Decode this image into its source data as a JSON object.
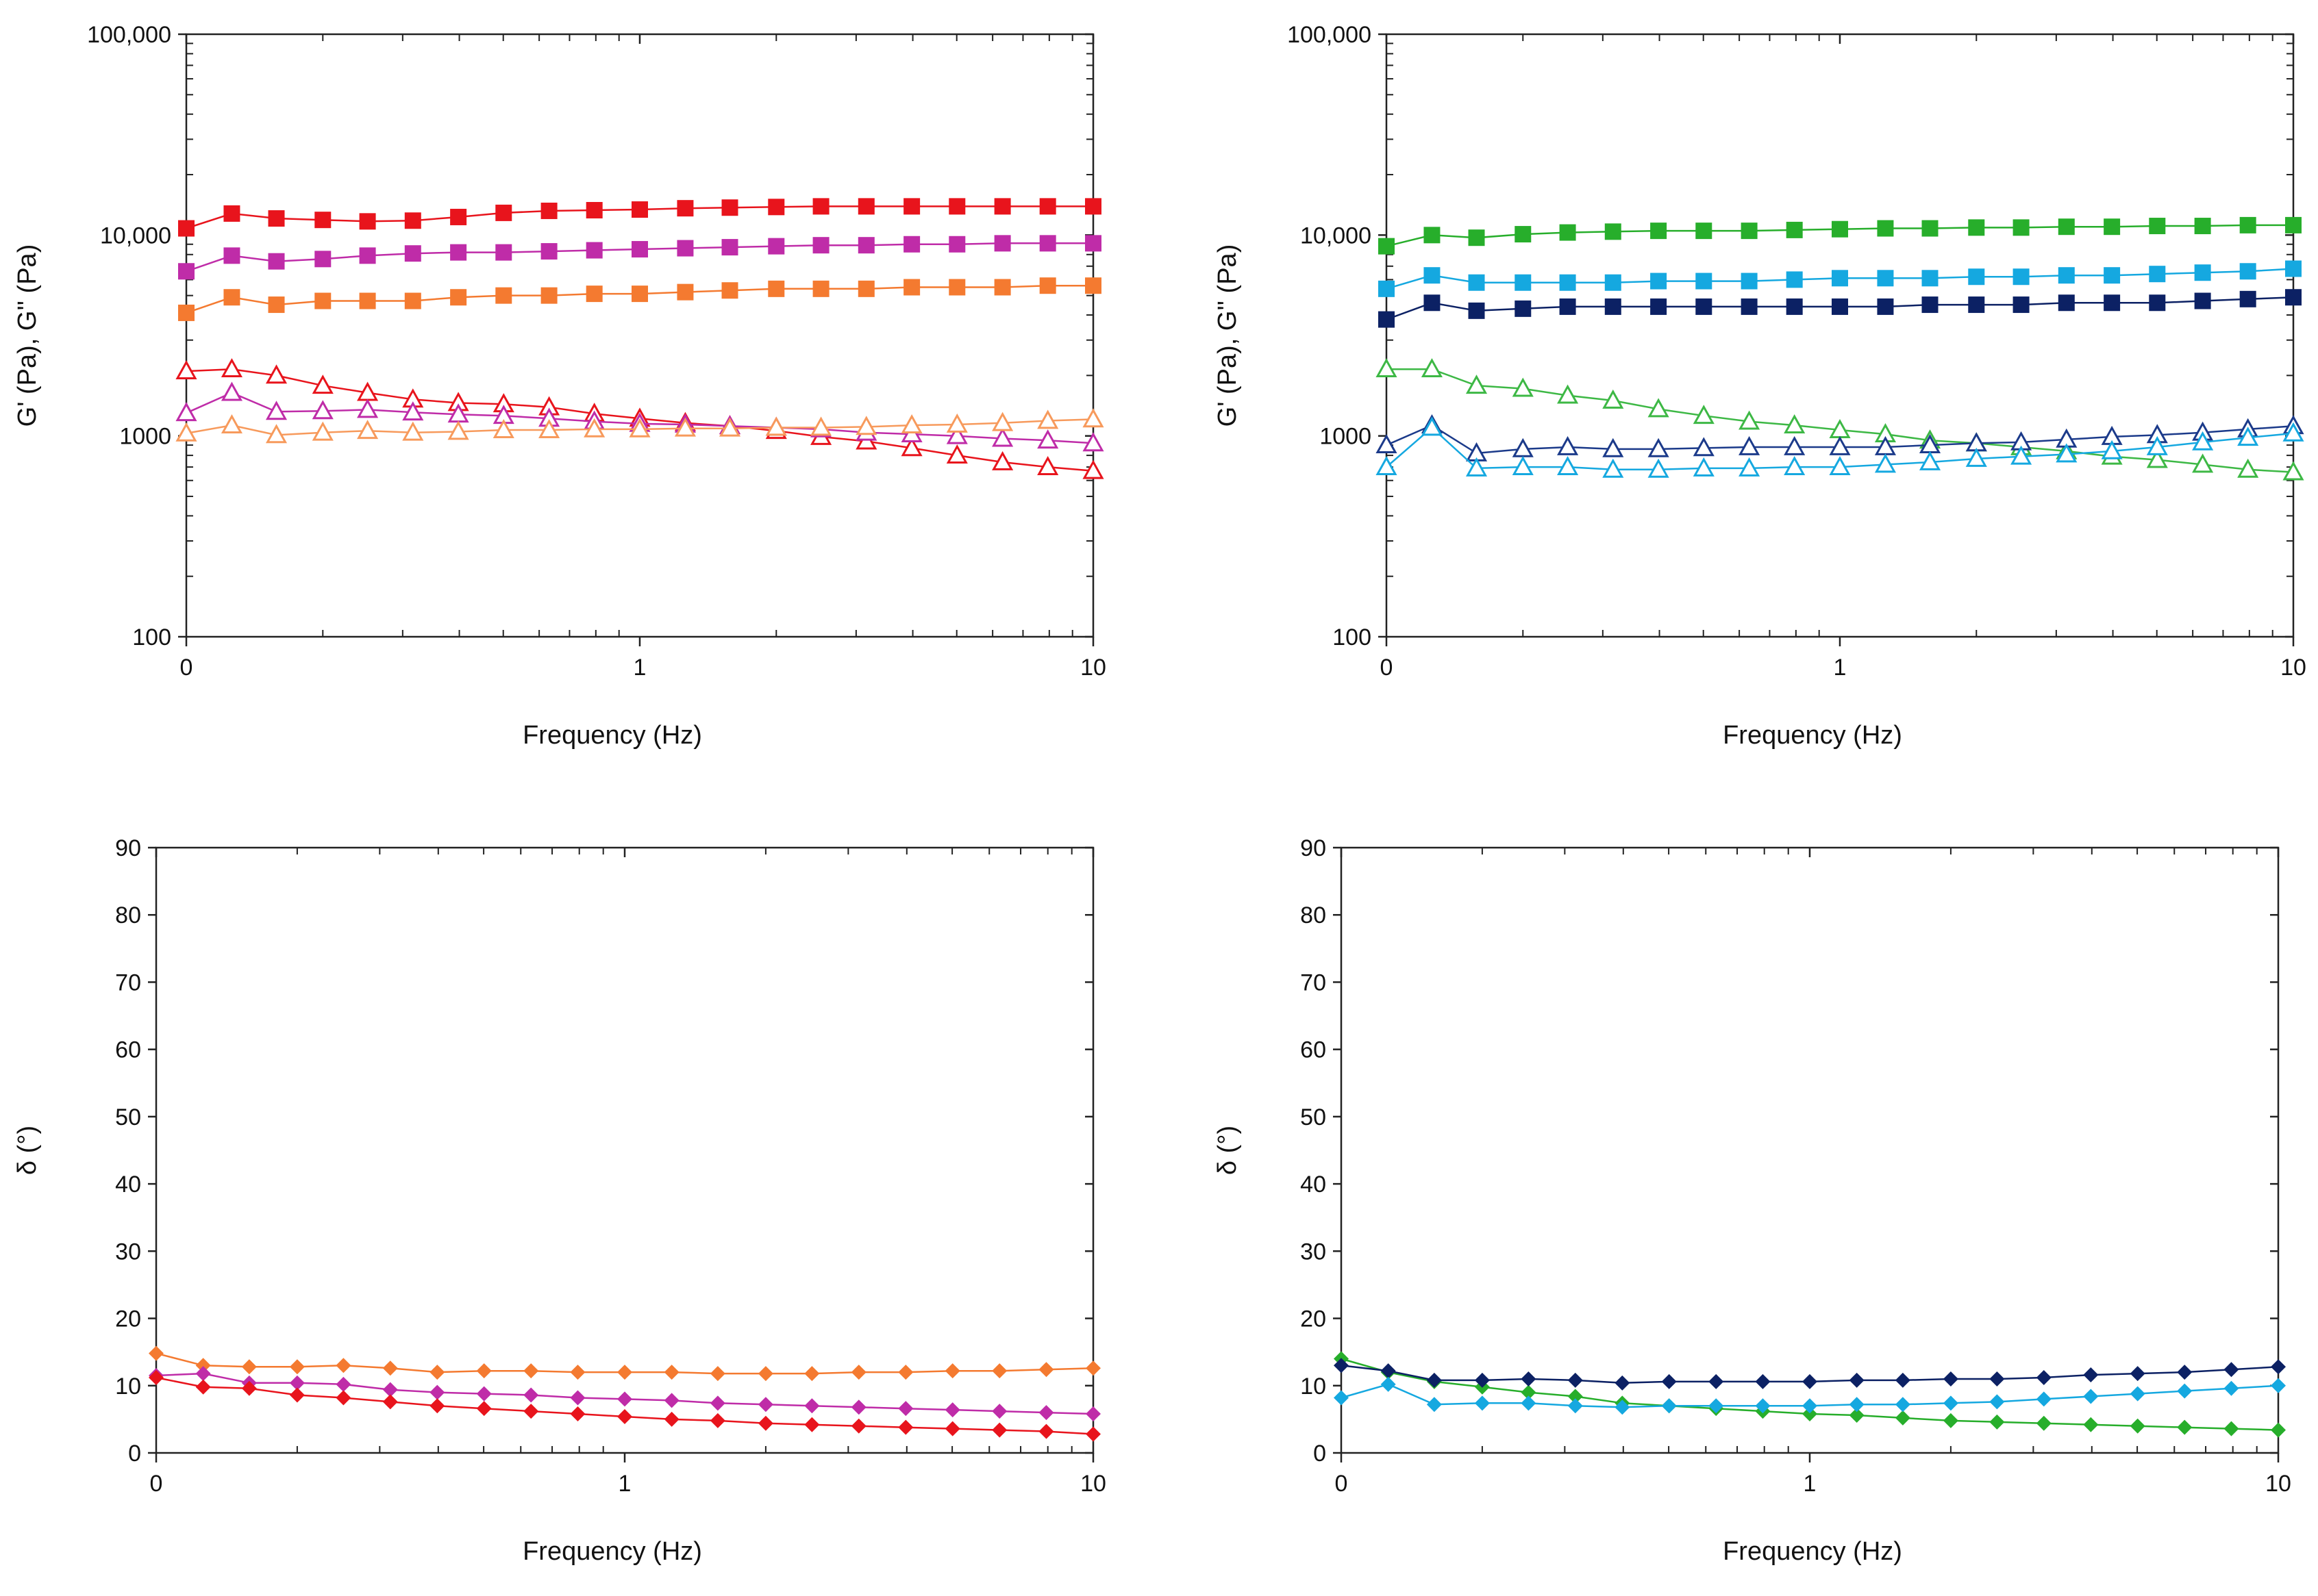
{
  "chart_data": [
    {
      "id": "top-left",
      "type": "line",
      "scale": {
        "x": "log",
        "y": "log"
      },
      "xlabel": "Frequency (Hz)",
      "ylabel": "G' (Pa), G'' (Pa)",
      "xlim": [
        0.1,
        10
      ],
      "ylim": [
        100,
        100000
      ],
      "x_ticks": [
        {
          "v": 0.1,
          "label": "0"
        },
        {
          "v": 1,
          "label": "1"
        },
        {
          "v": 10,
          "label": "10"
        }
      ],
      "y_ticks": [
        {
          "v": 100,
          "label": "100"
        },
        {
          "v": 1000,
          "label": "1000"
        },
        {
          "v": 10000,
          "label": "10,000"
        },
        {
          "v": 100000,
          "label": "100,000"
        }
      ],
      "x": [
        0.1,
        0.126,
        0.158,
        0.2,
        0.251,
        0.316,
        0.398,
        0.501,
        0.631,
        0.794,
        1.0,
        1.26,
        1.58,
        2.0,
        2.51,
        3.16,
        3.98,
        5.01,
        6.31,
        7.94,
        10.0
      ],
      "series": [
        {
          "name": "G' red",
          "color": "#e8141c",
          "marker": "square-filled",
          "values": [
            10800,
            12800,
            12100,
            11900,
            11700,
            11800,
            12300,
            12900,
            13200,
            13300,
            13400,
            13600,
            13700,
            13800,
            13900,
            13900,
            13900,
            13900,
            13900,
            13900,
            13900
          ]
        },
        {
          "name": "G' magenta",
          "color": "#bf2ca8",
          "marker": "square-filled",
          "values": [
            6600,
            7900,
            7400,
            7600,
            7900,
            8100,
            8200,
            8200,
            8300,
            8400,
            8500,
            8600,
            8700,
            8800,
            8900,
            8900,
            9000,
            9000,
            9100,
            9100,
            9100
          ]
        },
        {
          "name": "G' orange",
          "color": "#f47a30",
          "marker": "square-filled",
          "values": [
            4100,
            4900,
            4500,
            4700,
            4700,
            4700,
            4900,
            5000,
            5000,
            5100,
            5100,
            5200,
            5300,
            5400,
            5400,
            5400,
            5500,
            5500,
            5500,
            5600,
            5600
          ]
        },
        {
          "name": "G'' red",
          "color": "#e8141c",
          "marker": "triangle-open",
          "values": [
            2100,
            2150,
            2000,
            1780,
            1640,
            1520,
            1460,
            1440,
            1390,
            1290,
            1220,
            1160,
            1120,
            1060,
            990,
            940,
            870,
            800,
            740,
            700,
            670
          ]
        },
        {
          "name": "G'' magenta",
          "color": "#bf2ca8",
          "marker": "triangle-open",
          "values": [
            1300,
            1640,
            1320,
            1330,
            1350,
            1310,
            1280,
            1260,
            1220,
            1180,
            1150,
            1140,
            1120,
            1100,
            1080,
            1040,
            1020,
            1000,
            970,
            950,
            920
          ]
        },
        {
          "name": "G'' orange",
          "color": "#f79a5c",
          "marker": "triangle-open",
          "values": [
            1030,
            1130,
            1010,
            1040,
            1060,
            1040,
            1050,
            1070,
            1070,
            1080,
            1080,
            1090,
            1090,
            1100,
            1100,
            1110,
            1130,
            1140,
            1160,
            1190,
            1210
          ]
        }
      ]
    },
    {
      "id": "top-right",
      "type": "line",
      "scale": {
        "x": "log",
        "y": "log"
      },
      "xlabel": "Frequency (Hz)",
      "ylabel": "G' (Pa), G'' (Pa)",
      "xlim": [
        0.1,
        10
      ],
      "ylim": [
        100,
        100000
      ],
      "x_ticks": [
        {
          "v": 0.1,
          "label": "0"
        },
        {
          "v": 1,
          "label": "1"
        },
        {
          "v": 10,
          "label": "10"
        }
      ],
      "y_ticks": [
        {
          "v": 100,
          "label": "100"
        },
        {
          "v": 1000,
          "label": "1000"
        },
        {
          "v": 10000,
          "label": "10,000"
        },
        {
          "v": 100000,
          "label": "100,000"
        }
      ],
      "x": [
        0.1,
        0.126,
        0.158,
        0.2,
        0.251,
        0.316,
        0.398,
        0.501,
        0.631,
        0.794,
        1.0,
        1.26,
        1.58,
        2.0,
        2.51,
        3.16,
        3.98,
        5.01,
        6.31,
        7.94,
        10.0
      ],
      "series": [
        {
          "name": "G' green",
          "color": "#27ae2b",
          "marker": "square-filled",
          "values": [
            8800,
            10000,
            9700,
            10100,
            10300,
            10400,
            10500,
            10500,
            10500,
            10600,
            10700,
            10800,
            10800,
            10900,
            10900,
            11000,
            11000,
            11100,
            11100,
            11200,
            11200
          ]
        },
        {
          "name": "G' cyan",
          "color": "#15a8e0",
          "marker": "square-filled",
          "values": [
            5400,
            6300,
            5800,
            5800,
            5800,
            5800,
            5900,
            5900,
            5900,
            6000,
            6100,
            6100,
            6100,
            6200,
            6200,
            6300,
            6300,
            6400,
            6500,
            6600,
            6800
          ]
        },
        {
          "name": "G' navy",
          "color": "#0c2164",
          "marker": "square-filled",
          "values": [
            3800,
            4600,
            4200,
            4300,
            4400,
            4400,
            4400,
            4400,
            4400,
            4400,
            4400,
            4400,
            4500,
            4500,
            4500,
            4600,
            4600,
            4600,
            4700,
            4800,
            4900
          ]
        },
        {
          "name": "G'' green",
          "color": "#3db845",
          "marker": "triangle-open",
          "values": [
            2150,
            2150,
            1780,
            1720,
            1590,
            1500,
            1360,
            1260,
            1180,
            1130,
            1070,
            1020,
            950,
            920,
            880,
            840,
            790,
            760,
            720,
            680,
            660
          ]
        },
        {
          "name": "G'' navy",
          "color": "#1b3a8a",
          "marker": "triangle-open",
          "values": [
            900,
            1130,
            820,
            860,
            880,
            860,
            860,
            870,
            880,
            880,
            880,
            880,
            900,
            920,
            930,
            960,
            990,
            1010,
            1040,
            1080,
            1120
          ]
        },
        {
          "name": "G'' cyan",
          "color": "#15a8e0",
          "marker": "triangle-open",
          "values": [
            700,
            1100,
            690,
            700,
            700,
            680,
            680,
            690,
            690,
            700,
            700,
            720,
            740,
            770,
            790,
            810,
            840,
            880,
            930,
            980,
            1030
          ]
        }
      ]
    },
    {
      "id": "bottom-left",
      "type": "line",
      "scale": {
        "x": "log",
        "y": "linear"
      },
      "xlabel": "Frequency (Hz)",
      "ylabel": "δ (°)",
      "xlim": [
        0.1,
        10
      ],
      "ylim": [
        0,
        90
      ],
      "x_ticks": [
        {
          "v": 0.1,
          "label": "0"
        },
        {
          "v": 1,
          "label": "1"
        },
        {
          "v": 10,
          "label": "10"
        }
      ],
      "y_ticks": [
        {
          "v": 0,
          "label": "0"
        },
        {
          "v": 10,
          "label": "10"
        },
        {
          "v": 20,
          "label": "20"
        },
        {
          "v": 30,
          "label": "30"
        },
        {
          "v": 40,
          "label": "40"
        },
        {
          "v": 50,
          "label": "50"
        },
        {
          "v": 60,
          "label": "60"
        },
        {
          "v": 70,
          "label": "70"
        },
        {
          "v": 80,
          "label": "80"
        },
        {
          "v": 90,
          "label": "90"
        }
      ],
      "x": [
        0.1,
        0.126,
        0.158,
        0.2,
        0.251,
        0.316,
        0.398,
        0.501,
        0.631,
        0.794,
        1.0,
        1.26,
        1.58,
        2.0,
        2.51,
        3.16,
        3.98,
        5.01,
        6.31,
        7.94,
        10.0
      ],
      "series": [
        {
          "name": "δ orange",
          "color": "#f47a30",
          "marker": "diamond-filled",
          "values": [
            14.8,
            13.0,
            12.8,
            12.8,
            13.0,
            12.6,
            12.0,
            12.2,
            12.2,
            12.0,
            12.0,
            12.0,
            11.8,
            11.8,
            11.8,
            12.0,
            12.0,
            12.2,
            12.2,
            12.4,
            12.6
          ]
        },
        {
          "name": "δ magenta",
          "color": "#bf2ca8",
          "marker": "diamond-filled",
          "values": [
            11.5,
            11.8,
            10.4,
            10.4,
            10.2,
            9.4,
            9.0,
            8.8,
            8.6,
            8.2,
            8.0,
            7.8,
            7.4,
            7.2,
            7.0,
            6.8,
            6.6,
            6.4,
            6.2,
            6.0,
            5.8
          ]
        },
        {
          "name": "δ red",
          "color": "#e8141c",
          "marker": "diamond-filled",
          "values": [
            11.2,
            9.8,
            9.6,
            8.6,
            8.2,
            7.6,
            7.0,
            6.6,
            6.2,
            5.8,
            5.4,
            5.0,
            4.8,
            4.4,
            4.2,
            4.0,
            3.8,
            3.6,
            3.4,
            3.2,
            2.8
          ]
        }
      ]
    },
    {
      "id": "bottom-right",
      "type": "line",
      "scale": {
        "x": "log",
        "y": "linear"
      },
      "xlabel": "Frequency (Hz)",
      "ylabel": "δ (°)",
      "xlim": [
        0.1,
        10
      ],
      "ylim": [
        0,
        90
      ],
      "x_ticks": [
        {
          "v": 0.1,
          "label": "0"
        },
        {
          "v": 1,
          "label": "1"
        },
        {
          "v": 10,
          "label": "10"
        }
      ],
      "y_ticks": [
        {
          "v": 0,
          "label": "0"
        },
        {
          "v": 10,
          "label": "10"
        },
        {
          "v": 20,
          "label": "20"
        },
        {
          "v": 30,
          "label": "30"
        },
        {
          "v": 40,
          "label": "40"
        },
        {
          "v": 50,
          "label": "50"
        },
        {
          "v": 60,
          "label": "60"
        },
        {
          "v": 70,
          "label": "70"
        },
        {
          "v": 80,
          "label": "80"
        },
        {
          "v": 90,
          "label": "90"
        }
      ],
      "x": [
        0.1,
        0.126,
        0.158,
        0.2,
        0.251,
        0.316,
        0.398,
        0.501,
        0.631,
        0.794,
        1.0,
        1.26,
        1.58,
        2.0,
        2.51,
        3.16,
        3.98,
        5.01,
        6.31,
        7.94,
        10.0
      ],
      "series": [
        {
          "name": "δ green",
          "color": "#27ae2b",
          "marker": "diamond-filled",
          "values": [
            14.0,
            12.0,
            10.6,
            9.8,
            9.0,
            8.4,
            7.4,
            7.0,
            6.6,
            6.2,
            5.8,
            5.6,
            5.2,
            4.8,
            4.6,
            4.4,
            4.2,
            4.0,
            3.8,
            3.6,
            3.4
          ]
        },
        {
          "name": "δ navy",
          "color": "#0c2164",
          "marker": "diamond-filled",
          "values": [
            13.0,
            12.2,
            10.8,
            10.8,
            11.0,
            10.8,
            10.4,
            10.6,
            10.6,
            10.6,
            10.6,
            10.8,
            10.8,
            11.0,
            11.0,
            11.2,
            11.6,
            11.8,
            12.0,
            12.4,
            12.8
          ]
        },
        {
          "name": "δ cyan",
          "color": "#15a8e0",
          "marker": "diamond-filled",
          "values": [
            8.2,
            10.2,
            7.2,
            7.4,
            7.4,
            7.0,
            6.8,
            7.0,
            7.0,
            7.0,
            7.0,
            7.2,
            7.2,
            7.4,
            7.6,
            8.0,
            8.4,
            8.8,
            9.2,
            9.6,
            10.0
          ]
        }
      ]
    }
  ]
}
